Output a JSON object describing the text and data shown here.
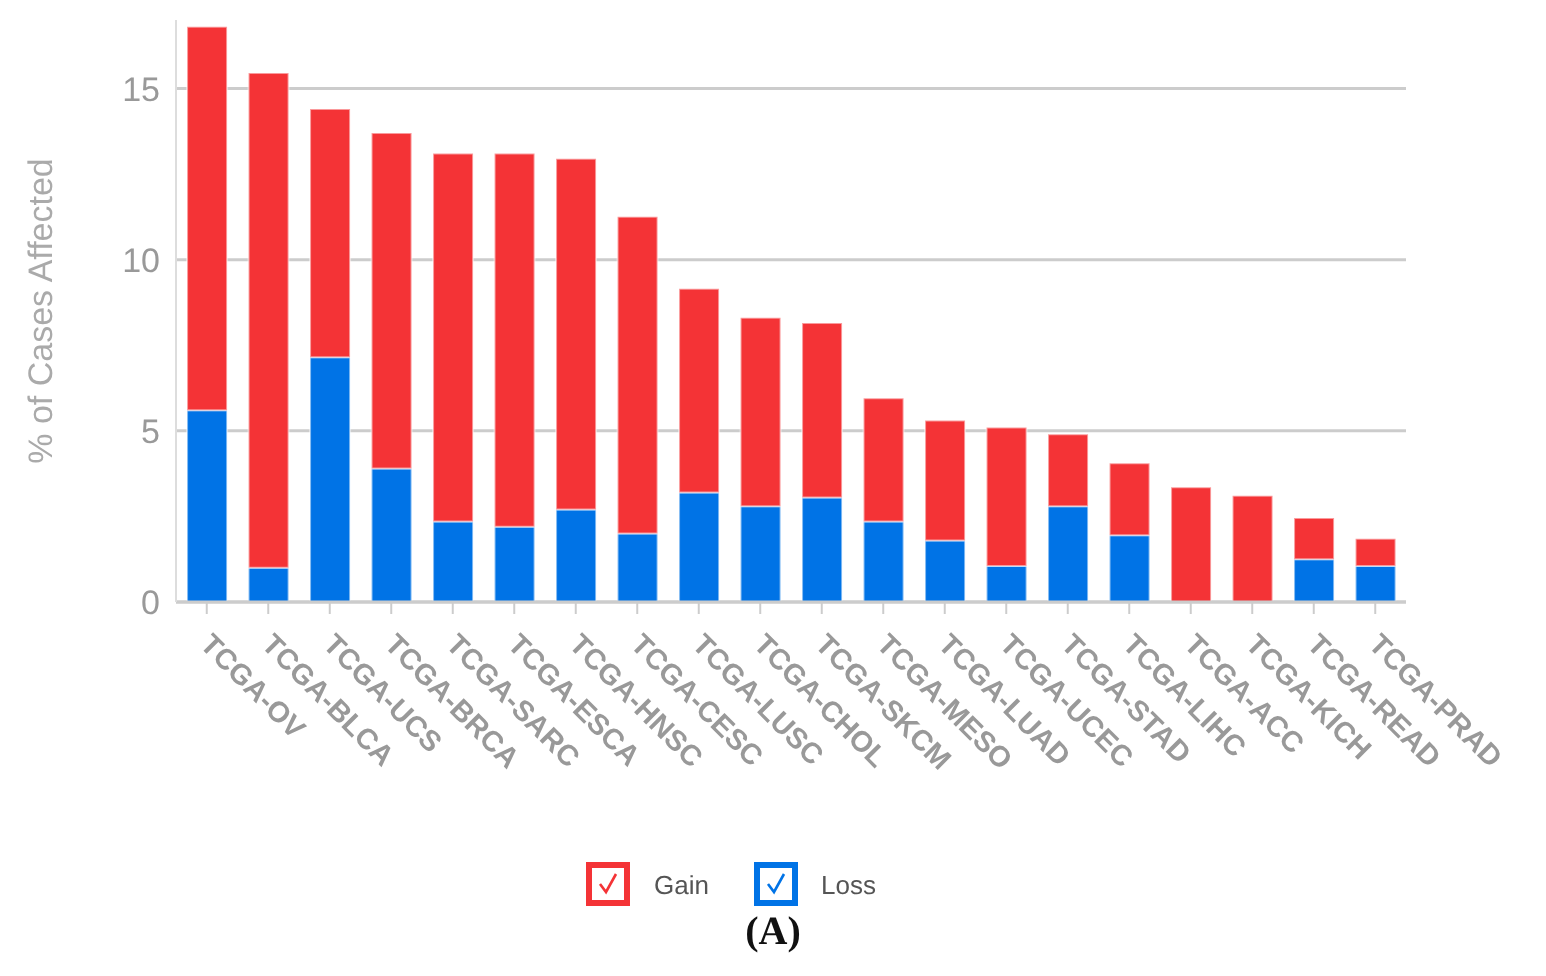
{
  "chart_data": {
    "type": "bar",
    "ylabel": "% of Cases Affected",
    "categories": [
      "TCGA-OV",
      "TCGA-BLCA",
      "TCGA-UCS",
      "TCGA-BRCA",
      "TCGA-SARC",
      "TCGA-ESCA",
      "TCGA-HNSC",
      "TCGA-CESC",
      "TCGA-LUSC",
      "TCGA-CHOL",
      "TCGA-SKCM",
      "TCGA-MESO",
      "TCGA-LUAD",
      "TCGA-UCEC",
      "TCGA-STAD",
      "TCGA-LIHC",
      "TCGA-ACC",
      "TCGA-KICH",
      "TCGA-READ",
      "TCGA-PRAD"
    ],
    "series": [
      {
        "name": "Loss",
        "color": "#0073e6",
        "values": [
          5.6,
          1.0,
          7.15,
          3.9,
          2.35,
          2.2,
          2.7,
          2.0,
          3.2,
          2.8,
          3.05,
          2.35,
          1.8,
          1.05,
          2.8,
          1.95,
          0,
          0,
          1.25,
          1.05
        ]
      },
      {
        "name": "Gain",
        "color": "#f43336",
        "values": [
          11.2,
          14.45,
          7.25,
          9.8,
          10.75,
          10.9,
          10.25,
          9.25,
          5.95,
          5.5,
          5.1,
          3.6,
          3.5,
          4.05,
          2.1,
          2.1,
          3.35,
          3.1,
          1.2,
          0.8
        ]
      }
    ],
    "stacked": true,
    "ylim": [
      0,
      17
    ],
    "yticks": [
      0,
      5,
      10,
      15
    ],
    "grid": "y",
    "legend": "bottom",
    "annotations": [
      "(A)"
    ]
  }
}
